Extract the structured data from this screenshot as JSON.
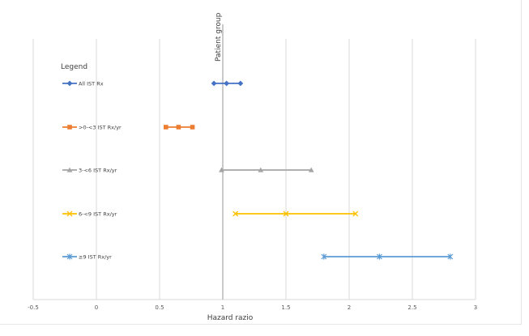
{
  "chart_data": {
    "type": "scatter",
    "title": "",
    "xlabel": "Hazard razio",
    "ylabel": "Patient group",
    "xlim": [
      -0.5,
      3
    ],
    "x_ticks": [
      "-0.5",
      "0",
      "0.5",
      "1",
      "1.5",
      "2",
      "2.5",
      "3"
    ],
    "grid": true,
    "reference_line_x": 1,
    "legend_title": "Legend",
    "legend_placement": "left",
    "series": [
      {
        "name": "All IST Rx",
        "color": "#4472c4",
        "marker": "diamond",
        "values": [
          0.93,
          1.03,
          1.14
        ]
      },
      {
        "name": ">0-<3 IST Rx/yr",
        "color": "#ed7d31",
        "marker": "square",
        "values": [
          0.55,
          0.65,
          0.76
        ]
      },
      {
        "name": "3-<6 IST Rx/yr",
        "color": "#a5a5a5",
        "marker": "triangle",
        "values": [
          0.99,
          1.3,
          1.7
        ]
      },
      {
        "name": "6-<9 IST Rx/yr",
        "color": "#ffc000",
        "marker": "x",
        "values": [
          1.1,
          1.5,
          2.05
        ]
      },
      {
        "name": "≥9 IST Rx/yr",
        "color": "#5b9bd5",
        "marker": "star",
        "values": [
          1.8,
          2.24,
          2.8
        ]
      }
    ]
  }
}
